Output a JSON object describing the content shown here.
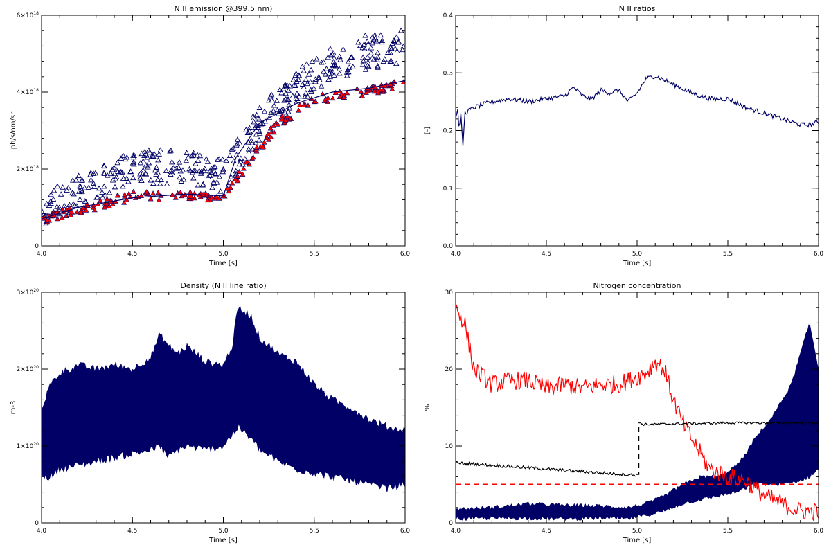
{
  "colors": {
    "navy": "#000066",
    "red": "#ff0000",
    "black": "#000000"
  },
  "chart_data": [
    {
      "id": "p1",
      "type": "scatter",
      "title": "N II emission @399.5 nm)",
      "xlabel": "Time [s]",
      "ylabel": "ph/s/nm/sr",
      "xlim": [
        4.0,
        6.0
      ],
      "ylim": [
        0,
        6e+18
      ],
      "xticks": [
        {
          "v": 4.0,
          "label": "4.0"
        },
        {
          "v": 4.5,
          "label": "4.5"
        },
        {
          "v": 5.0,
          "label": "5.0"
        },
        {
          "v": 5.5,
          "label": "5.5"
        },
        {
          "v": 6.0,
          "label": "6.0"
        }
      ],
      "yticks": [
        {
          "v": 0,
          "label": "0",
          "sup": ""
        },
        {
          "v": 2e+18,
          "label": "2×10",
          "sup": "18"
        },
        {
          "v": 4e+18,
          "label": "4×10",
          "sup": "18"
        },
        {
          "v": 6e+18,
          "label": "6×10",
          "sup": "18"
        }
      ],
      "series": [
        {
          "style": "open-triangle",
          "color": "#000066",
          "x": [
            4.0,
            4.5,
            4.9,
            5.0,
            5.2,
            5.5,
            5.75,
            6.0
          ],
          "y": [
            9e+17,
            2.1e+18,
            2e+18,
            1.8e+18,
            3.2e+18,
            4.5e+18,
            5e+18,
            5.2e+18
          ],
          "spread": 4.5e+17,
          "n": 420
        },
        {
          "style": "filled-triangle",
          "color": "#ff0000",
          "x": [
            4.0,
            4.5,
            5.0,
            5.05,
            5.3,
            5.5,
            5.75,
            6.0
          ],
          "y": [
            7e+17,
            1.3e+18,
            1.3e+18,
            1.6e+18,
            3.2e+18,
            3.8e+18,
            4e+18,
            4.2e+18
          ],
          "spread": 1.2e+17,
          "n": 220
        },
        {
          "style": "line",
          "color": "#000066",
          "x": [
            4.0,
            4.2,
            4.5,
            4.8,
            5.0,
            5.07,
            5.2,
            5.4,
            5.6,
            5.8,
            6.0
          ],
          "y": [
            7e+17,
            1e+18,
            1.25e+18,
            1.35e+18,
            1.3e+18,
            2.3e+18,
            3.2e+18,
            3.7e+18,
            4e+18,
            4.1e+18,
            4.3e+18
          ]
        }
      ]
    },
    {
      "id": "p2",
      "type": "line",
      "title": "N II ratios",
      "xlabel": "Time [s]",
      "ylabel": "[-]",
      "xlim": [
        4.0,
        6.0
      ],
      "ylim": [
        0.0,
        0.4
      ],
      "xticks": [
        {
          "v": 4.0,
          "label": "4.0"
        },
        {
          "v": 4.5,
          "label": "4.5"
        },
        {
          "v": 5.0,
          "label": "5.0"
        },
        {
          "v": 5.5,
          "label": "5.5"
        },
        {
          "v": 6.0,
          "label": "6.0"
        }
      ],
      "yticks": [
        {
          "v": 0.0,
          "label": "0.0"
        },
        {
          "v": 0.1,
          "label": "0.1"
        },
        {
          "v": 0.2,
          "label": "0.2"
        },
        {
          "v": 0.3,
          "label": "0.3"
        },
        {
          "v": 0.4,
          "label": "0.4"
        }
      ],
      "series": [
        {
          "style": "line",
          "color": "#000066",
          "noise": 0.004,
          "x": [
            4.0,
            4.01,
            4.02,
            4.03,
            4.04,
            4.05,
            4.1,
            4.2,
            4.3,
            4.4,
            4.5,
            4.6,
            4.65,
            4.7,
            4.75,
            4.8,
            4.85,
            4.9,
            4.95,
            5.0,
            5.05,
            5.1,
            5.2,
            5.3,
            5.4,
            5.5,
            5.6,
            5.7,
            5.8,
            5.9,
            5.95,
            6.0
          ],
          "y": [
            0.22,
            0.24,
            0.2,
            0.23,
            0.17,
            0.23,
            0.24,
            0.25,
            0.255,
            0.25,
            0.255,
            0.26,
            0.275,
            0.26,
            0.255,
            0.27,
            0.265,
            0.27,
            0.25,
            0.265,
            0.29,
            0.295,
            0.28,
            0.265,
            0.255,
            0.255,
            0.24,
            0.23,
            0.22,
            0.21,
            0.21,
            0.215
          ]
        }
      ]
    },
    {
      "id": "p3",
      "type": "area",
      "title": "Density (N II line ratio)",
      "xlabel": "Time [s]",
      "ylabel": "m-3",
      "xlim": [
        4.0,
        6.0
      ],
      "ylim": [
        0,
        3e+20
      ],
      "xticks": [
        {
          "v": 4.0,
          "label": "4.0"
        },
        {
          "v": 4.5,
          "label": "4.5"
        },
        {
          "v": 5.0,
          "label": "5.0"
        },
        {
          "v": 5.5,
          "label": "5.5"
        },
        {
          "v": 6.0,
          "label": "6.0"
        }
      ],
      "yticks": [
        {
          "v": 0,
          "label": "0",
          "sup": ""
        },
        {
          "v": 1e+20,
          "label": "1×10",
          "sup": "20"
        },
        {
          "v": 2e+20,
          "label": "2×10",
          "sup": "20"
        },
        {
          "v": 3e+20,
          "label": "3×10",
          "sup": "20"
        }
      ],
      "series": [
        {
          "style": "band",
          "color": "#000066",
          "noise": 5e+18,
          "x": [
            4.0,
            4.05,
            4.1,
            4.2,
            4.3,
            4.4,
            4.5,
            4.6,
            4.65,
            4.7,
            4.75,
            4.8,
            4.9,
            5.0,
            5.05,
            5.08,
            5.15,
            5.2,
            5.3,
            5.4,
            5.5,
            5.6,
            5.7,
            5.8,
            5.9,
            6.0
          ],
          "upper": [
            1.5e+20,
            1.8e+20,
            1.95e+20,
            2.05e+20,
            2e+20,
            2.05e+20,
            2e+20,
            2.15e+20,
            2.45e+20,
            2.3e+20,
            2.2e+20,
            2.3e+20,
            2.1e+20,
            2.05e+20,
            2.3e+20,
            2.8e+20,
            2.7e+20,
            2.4e+20,
            2.2e+20,
            2.1e+20,
            1.8e+20,
            1.6e+20,
            1.5e+20,
            1.35e+20,
            1.25e+20,
            1.2e+20
          ],
          "lower": [
            6e+19,
            6e+19,
            7e+19,
            7.5e+19,
            8e+19,
            8.5e+19,
            9e+19,
            9.5e+19,
            1e+20,
            8.5e+19,
            9.5e+19,
            1e+20,
            9.5e+19,
            1e+20,
            1.15e+20,
            1.25e+20,
            1.1e+20,
            9.5e+19,
            8e+19,
            7e+19,
            6.5e+19,
            6e+19,
            5.5e+19,
            5e+19,
            4.5e+19,
            5e+19
          ]
        }
      ]
    },
    {
      "id": "p4",
      "type": "line",
      "title": "Nitrogen concentration",
      "xlabel": "Time [s]",
      "ylabel": "%",
      "xlim": [
        4.0,
        6.0
      ],
      "ylim": [
        0,
        30
      ],
      "xticks": [
        {
          "v": 4.0,
          "label": "4.0"
        },
        {
          "v": 4.5,
          "label": "4.5"
        },
        {
          "v": 5.0,
          "label": "5.0"
        },
        {
          "v": 5.5,
          "label": "5.5"
        },
        {
          "v": 6.0,
          "label": "6.0"
        }
      ],
      "yticks": [
        {
          "v": 0,
          "label": "0"
        },
        {
          "v": 10,
          "label": "10"
        },
        {
          "v": 20,
          "label": "20"
        },
        {
          "v": 30,
          "label": "30"
        }
      ],
      "series": [
        {
          "style": "band",
          "color": "#000066",
          "noise": 0.25,
          "x": [
            4.0,
            4.2,
            4.4,
            4.6,
            4.8,
            4.95,
            5.05,
            5.15,
            5.25,
            5.35,
            5.45,
            5.55,
            5.6,
            5.65,
            5.7,
            5.75,
            5.8,
            5.85,
            5.9,
            5.95,
            6.0
          ],
          "upper": [
            1.8,
            2.0,
            2.5,
            2.3,
            2.2,
            2.0,
            2.5,
            3.5,
            5.0,
            6.0,
            6.0,
            7.5,
            9.0,
            11.0,
            12.5,
            14.0,
            16.0,
            18.0,
            22.0,
            26.0,
            20.0
          ],
          "lower": [
            0.5,
            0.6,
            0.6,
            0.5,
            0.6,
            0.5,
            1.0,
            1.5,
            2.5,
            3.0,
            3.5,
            4.0,
            4.5,
            5.0,
            5.0,
            5.0,
            5.0,
            5.2,
            5.5,
            6.0,
            7.0
          ]
        },
        {
          "style": "line",
          "color": "#ff0000",
          "noise": 1.2,
          "x": [
            4.0,
            4.05,
            4.1,
            4.15,
            4.2,
            4.3,
            4.4,
            4.5,
            4.6,
            4.7,
            4.8,
            4.9,
            5.0,
            5.05,
            5.1,
            5.15,
            5.2,
            5.25,
            5.3,
            5.35,
            5.4,
            5.5,
            5.6,
            5.65,
            5.7,
            5.8,
            5.9,
            6.0
          ],
          "y": [
            28.0,
            26.0,
            20.0,
            19.0,
            18.0,
            18.5,
            18.5,
            17.5,
            18.0,
            17.5,
            18.0,
            18.0,
            19.0,
            19.5,
            21.0,
            20.0,
            16.0,
            13.0,
            11.0,
            9.0,
            7.0,
            6.0,
            5.5,
            4.5,
            3.5,
            2.5,
            1.5,
            1.5
          ]
        },
        {
          "style": "line",
          "color": "#000000",
          "noise": 0.2,
          "x": [
            4.0,
            4.2,
            4.5,
            4.8,
            4.99
          ],
          "y": [
            7.8,
            7.5,
            7.0,
            6.5,
            6.2
          ]
        },
        {
          "style": "dashed",
          "color": "#000000",
          "x": [
            4.995,
            5.01,
            5.01,
            5.02
          ],
          "y": [
            6.3,
            6.3,
            13.0,
            13.0
          ]
        },
        {
          "style": "line",
          "color": "#000000",
          "noise": 0.15,
          "x": [
            5.02,
            5.5,
            6.0
          ],
          "y": [
            12.8,
            13.0,
            13.0
          ]
        },
        {
          "style": "dashed",
          "color": "#ff0000",
          "width": 2,
          "x": [
            4.0,
            6.0
          ],
          "y": [
            5.0,
            5.0
          ]
        }
      ]
    }
  ]
}
